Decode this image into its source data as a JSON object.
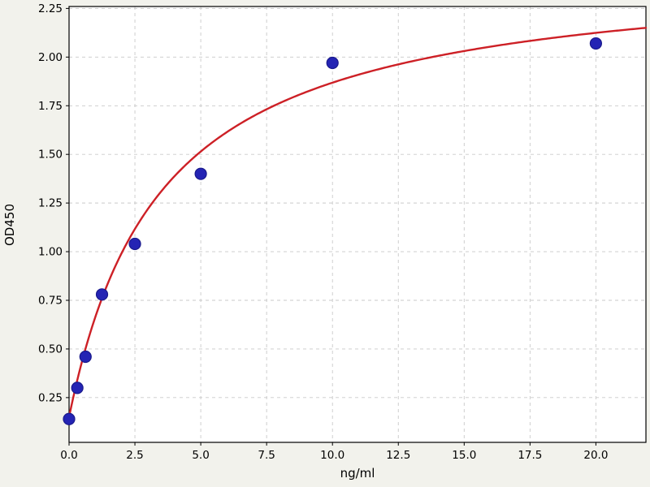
{
  "style": {
    "figure_bg": "#f2f2ec",
    "plot_bg": "#ffffff",
    "grid_color": "#c9c9c9",
    "axis_color": "#000000",
    "curve_color": "#cd2026",
    "point_fill": "#2424b4",
    "point_edge": "#1a1a8c",
    "tick_label_color": "#000000"
  },
  "chart_data": {
    "type": "scatter",
    "title": "",
    "xlabel": "ng/ml",
    "ylabel": "OD450",
    "xlim": [
      0,
      21.9
    ],
    "ylim": [
      0.02,
      2.26
    ],
    "grid": true,
    "grid_style": "dashed",
    "x_tick_values": [
      0.0,
      2.5,
      5.0,
      7.5,
      10.0,
      12.5,
      15.0,
      17.5,
      20.0
    ],
    "x_tick_labels": [
      "0.0",
      "2.5",
      "5.0",
      "7.5",
      "10.0",
      "12.5",
      "15.0",
      "17.5",
      "20.0"
    ],
    "y_tick_values": [
      0.25,
      0.5,
      0.75,
      1.0,
      1.25,
      1.5,
      1.75,
      2.0,
      2.25
    ],
    "y_tick_labels": [
      "0.25",
      "0.50",
      "0.75",
      "1.00",
      "1.25",
      "1.50",
      "1.75",
      "2.00",
      "2.25"
    ],
    "series": [
      {
        "name": "standard-points",
        "type": "scatter",
        "x": [
          0,
          0.313,
          0.625,
          1.25,
          2.5,
          5,
          10,
          20
        ],
        "y": [
          0.14,
          0.3,
          0.46,
          0.78,
          1.04,
          1.4,
          1.97,
          2.07
        ]
      },
      {
        "name": "fit-curve",
        "type": "line",
        "model": "y = y0 + a*x/(k+x)",
        "y0": 0.15,
        "a": 2.32,
        "k": 3.5
      }
    ],
    "legend": "none"
  }
}
